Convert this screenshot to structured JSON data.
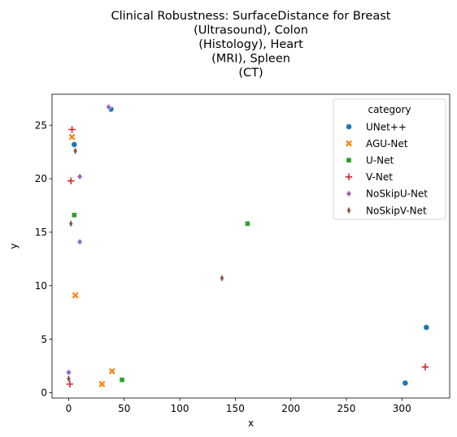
{
  "chart_data": {
    "type": "scatter",
    "title_lines": [
      "Clinical Robustness: SurfaceDistance for Breast",
      "(Ultrasound), Colon",
      "(Histology), Heart",
      "(MRI), Spleen",
      "(CT)"
    ],
    "xlabel": "x",
    "ylabel": "y",
    "xlim": [
      -15,
      343
    ],
    "ylim": [
      -0.5,
      27.9
    ],
    "xticks": [
      0,
      50,
      100,
      150,
      200,
      250,
      300
    ],
    "yticks": [
      0,
      5,
      10,
      15,
      20,
      25
    ],
    "grid": false,
    "legend": {
      "title": "category",
      "placement": "top-right"
    },
    "series": [
      {
        "name": "UNet++",
        "marker": "circle",
        "color": "#1f77b4",
        "points": [
          [
            38,
            26.5
          ],
          [
            5,
            23.2
          ],
          [
            303,
            0.9
          ],
          [
            322,
            6.1
          ]
        ]
      },
      {
        "name": "AGU-Net",
        "marker": "x",
        "color": "#ff7f0e",
        "points": [
          [
            3,
            23.9
          ],
          [
            6,
            9.1
          ],
          [
            39,
            2.0
          ],
          [
            30,
            0.8
          ]
        ]
      },
      {
        "name": "U-Net",
        "marker": "square",
        "color": "#2ca02c",
        "points": [
          [
            5,
            16.6
          ],
          [
            161,
            15.8
          ],
          [
            48,
            1.2
          ]
        ]
      },
      {
        "name": "V-Net",
        "marker": "plus",
        "color": "#d62728",
        "points": [
          [
            3,
            24.6
          ],
          [
            2,
            19.8
          ],
          [
            1,
            0.8
          ],
          [
            321,
            2.4
          ]
        ]
      },
      {
        "name": "NoSkipU-Net",
        "marker": "diamond",
        "color": "#9467bd",
        "points": [
          [
            36,
            26.7
          ],
          [
            10,
            20.2
          ],
          [
            10,
            14.1
          ],
          [
            0,
            1.9
          ]
        ]
      },
      {
        "name": "NoSkipV-Net",
        "marker": "thin-diamond",
        "color": "#8c564b",
        "points": [
          [
            6,
            22.6
          ],
          [
            2,
            15.8
          ],
          [
            138,
            10.7
          ],
          [
            0,
            1.3
          ]
        ]
      }
    ]
  }
}
